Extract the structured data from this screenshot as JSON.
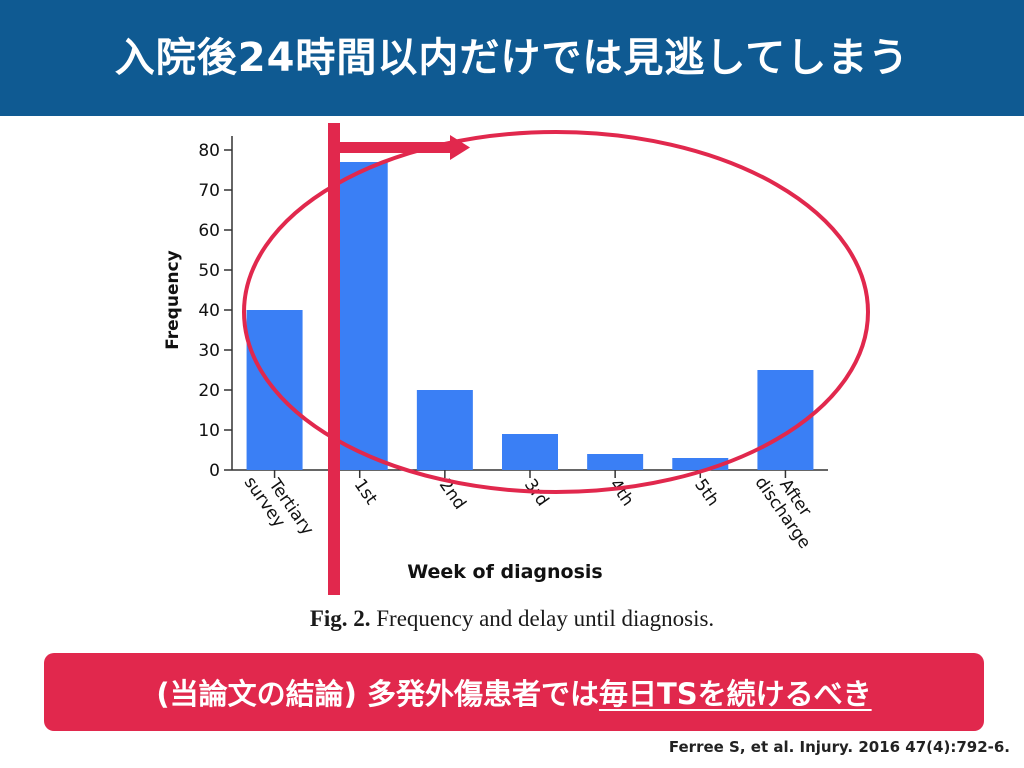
{
  "header": {
    "title": "入院後24時間以内だけでは見逃してしまう"
  },
  "figure": {
    "caption_label": "Fig. 2.",
    "caption_text": " Frequency and delay until diagnosis."
  },
  "conclusion": {
    "prefix": "(当論文の結論) 多発外傷患者では",
    "emphasis": "毎日TSを続けるべき"
  },
  "citation": "Ferree S, et al. Injury. 2016 47(4):792-6.",
  "colors": {
    "header_bg": "#0f5a92",
    "bar": "#3a7ff5",
    "accent": "#e1284d"
  },
  "chart_data": {
    "type": "bar",
    "categories": [
      "Tertiary survey",
      "1st",
      "2nd",
      "3rd",
      "4th",
      "5th",
      "After discharge"
    ],
    "values": [
      40,
      77,
      20,
      9,
      4,
      3,
      25
    ],
    "xlabel": "Week of diagnosis",
    "ylabel": "Frequency",
    "ylim": [
      0,
      80
    ],
    "yticks": [
      0,
      10,
      20,
      30,
      40,
      50,
      60,
      70,
      80
    ],
    "grid": false
  }
}
